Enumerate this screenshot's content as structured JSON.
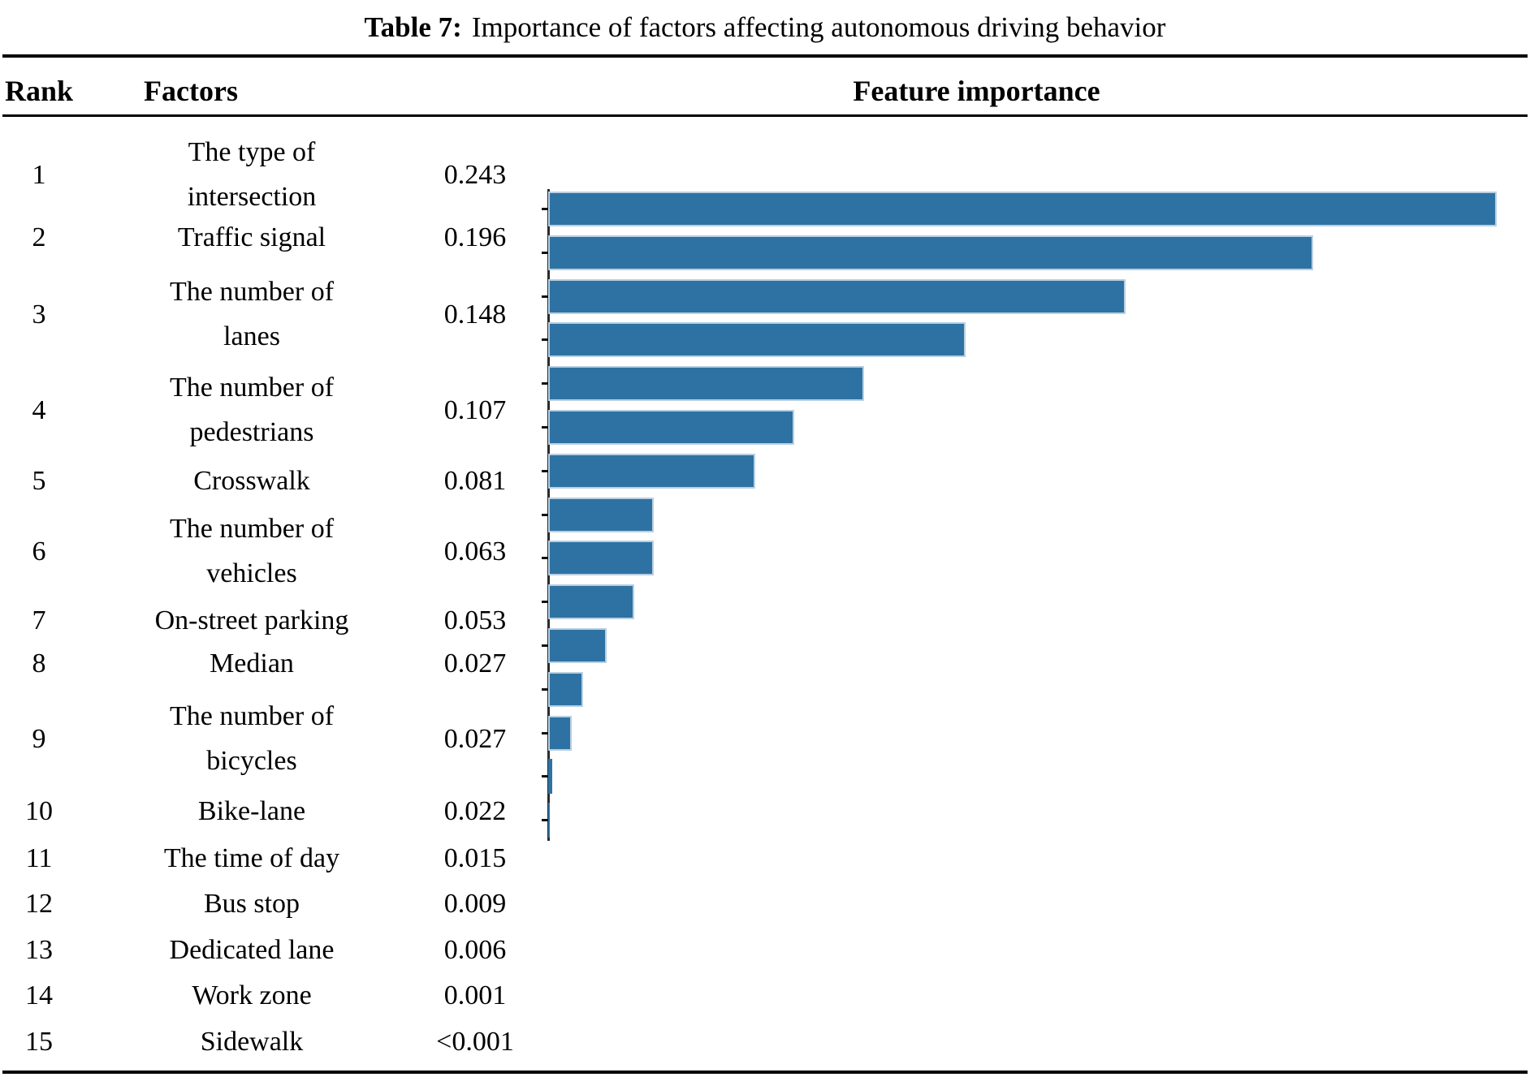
{
  "title": {
    "prefix": "Table 7:",
    "text": "Importance of factors affecting autonomous driving behavior"
  },
  "header": {
    "rank": "Rank",
    "factors": "Factors",
    "feature_importance": "Feature importance"
  },
  "rows": [
    {
      "rank": "1",
      "factor_lines": [
        "The type of",
        "intersection"
      ],
      "value": "0.243"
    },
    {
      "rank": "2",
      "factor_lines": [
        "Traffic signal"
      ],
      "value": "0.196"
    },
    {
      "rank": "3",
      "factor_lines": [
        "The number of",
        "lanes"
      ],
      "value": "0.148"
    },
    {
      "rank": "4",
      "factor_lines": [
        "The number of",
        "pedestrians"
      ],
      "value": "0.107"
    },
    {
      "rank": "5",
      "factor_lines": [
        "Crosswalk"
      ],
      "value": "0.081"
    },
    {
      "rank": "6",
      "factor_lines": [
        "The number of",
        "vehicles"
      ],
      "value": "0.063"
    },
    {
      "rank": "7",
      "factor_lines": [
        "On-street parking"
      ],
      "value": "0.053"
    },
    {
      "rank": "8",
      "factor_lines": [
        "Median"
      ],
      "value": "0.027"
    },
    {
      "rank": "9",
      "factor_lines": [
        "The number of",
        "bicycles"
      ],
      "value": "0.027"
    },
    {
      "rank": "10",
      "factor_lines": [
        "Bike-lane"
      ],
      "value": "0.022"
    },
    {
      "rank": "11",
      "factor_lines": [
        "The time of day"
      ],
      "value": "0.015"
    },
    {
      "rank": "12",
      "factor_lines": [
        "Bus stop"
      ],
      "value": "0.009"
    },
    {
      "rank": "13",
      "factor_lines": [
        "Dedicated lane"
      ],
      "value": "0.006"
    },
    {
      "rank": "14",
      "factor_lines": [
        "Work zone"
      ],
      "value": "0.001"
    },
    {
      "rank": "15",
      "factor_lines": [
        "Sidewalk"
      ],
      "value": "<0.001"
    }
  ],
  "chart_data": {
    "type": "bar",
    "orientation": "horizontal",
    "title": "Feature importance",
    "categories": [
      "The type of intersection",
      "Traffic signal",
      "The number of lanes",
      "The number of pedestrians",
      "Crosswalk",
      "The number of vehicles",
      "On-street parking",
      "Median",
      "The number of bicycles",
      "Bike-lane",
      "The time of day",
      "Bus stop",
      "Dedicated lane",
      "Work zone",
      "Sidewalk"
    ],
    "values": [
      0.243,
      0.196,
      0.148,
      0.107,
      0.081,
      0.063,
      0.053,
      0.027,
      0.027,
      0.022,
      0.015,
      0.009,
      0.006,
      0.001,
      0.0005
    ],
    "value_labels": [
      "0.243",
      "0.196",
      "0.148",
      "0.107",
      "0.081",
      "0.063",
      "0.053",
      "0.027",
      "0.027",
      "0.022",
      "0.015",
      "0.009",
      "0.006",
      "0.001",
      "<0.001"
    ],
    "xlim": [
      0,
      0.25
    ],
    "grid": false,
    "legend": false,
    "bar_color": "#2e72a3",
    "bar_edge_color": "#b9cfe1",
    "axis_color": "#2b2b2b"
  }
}
